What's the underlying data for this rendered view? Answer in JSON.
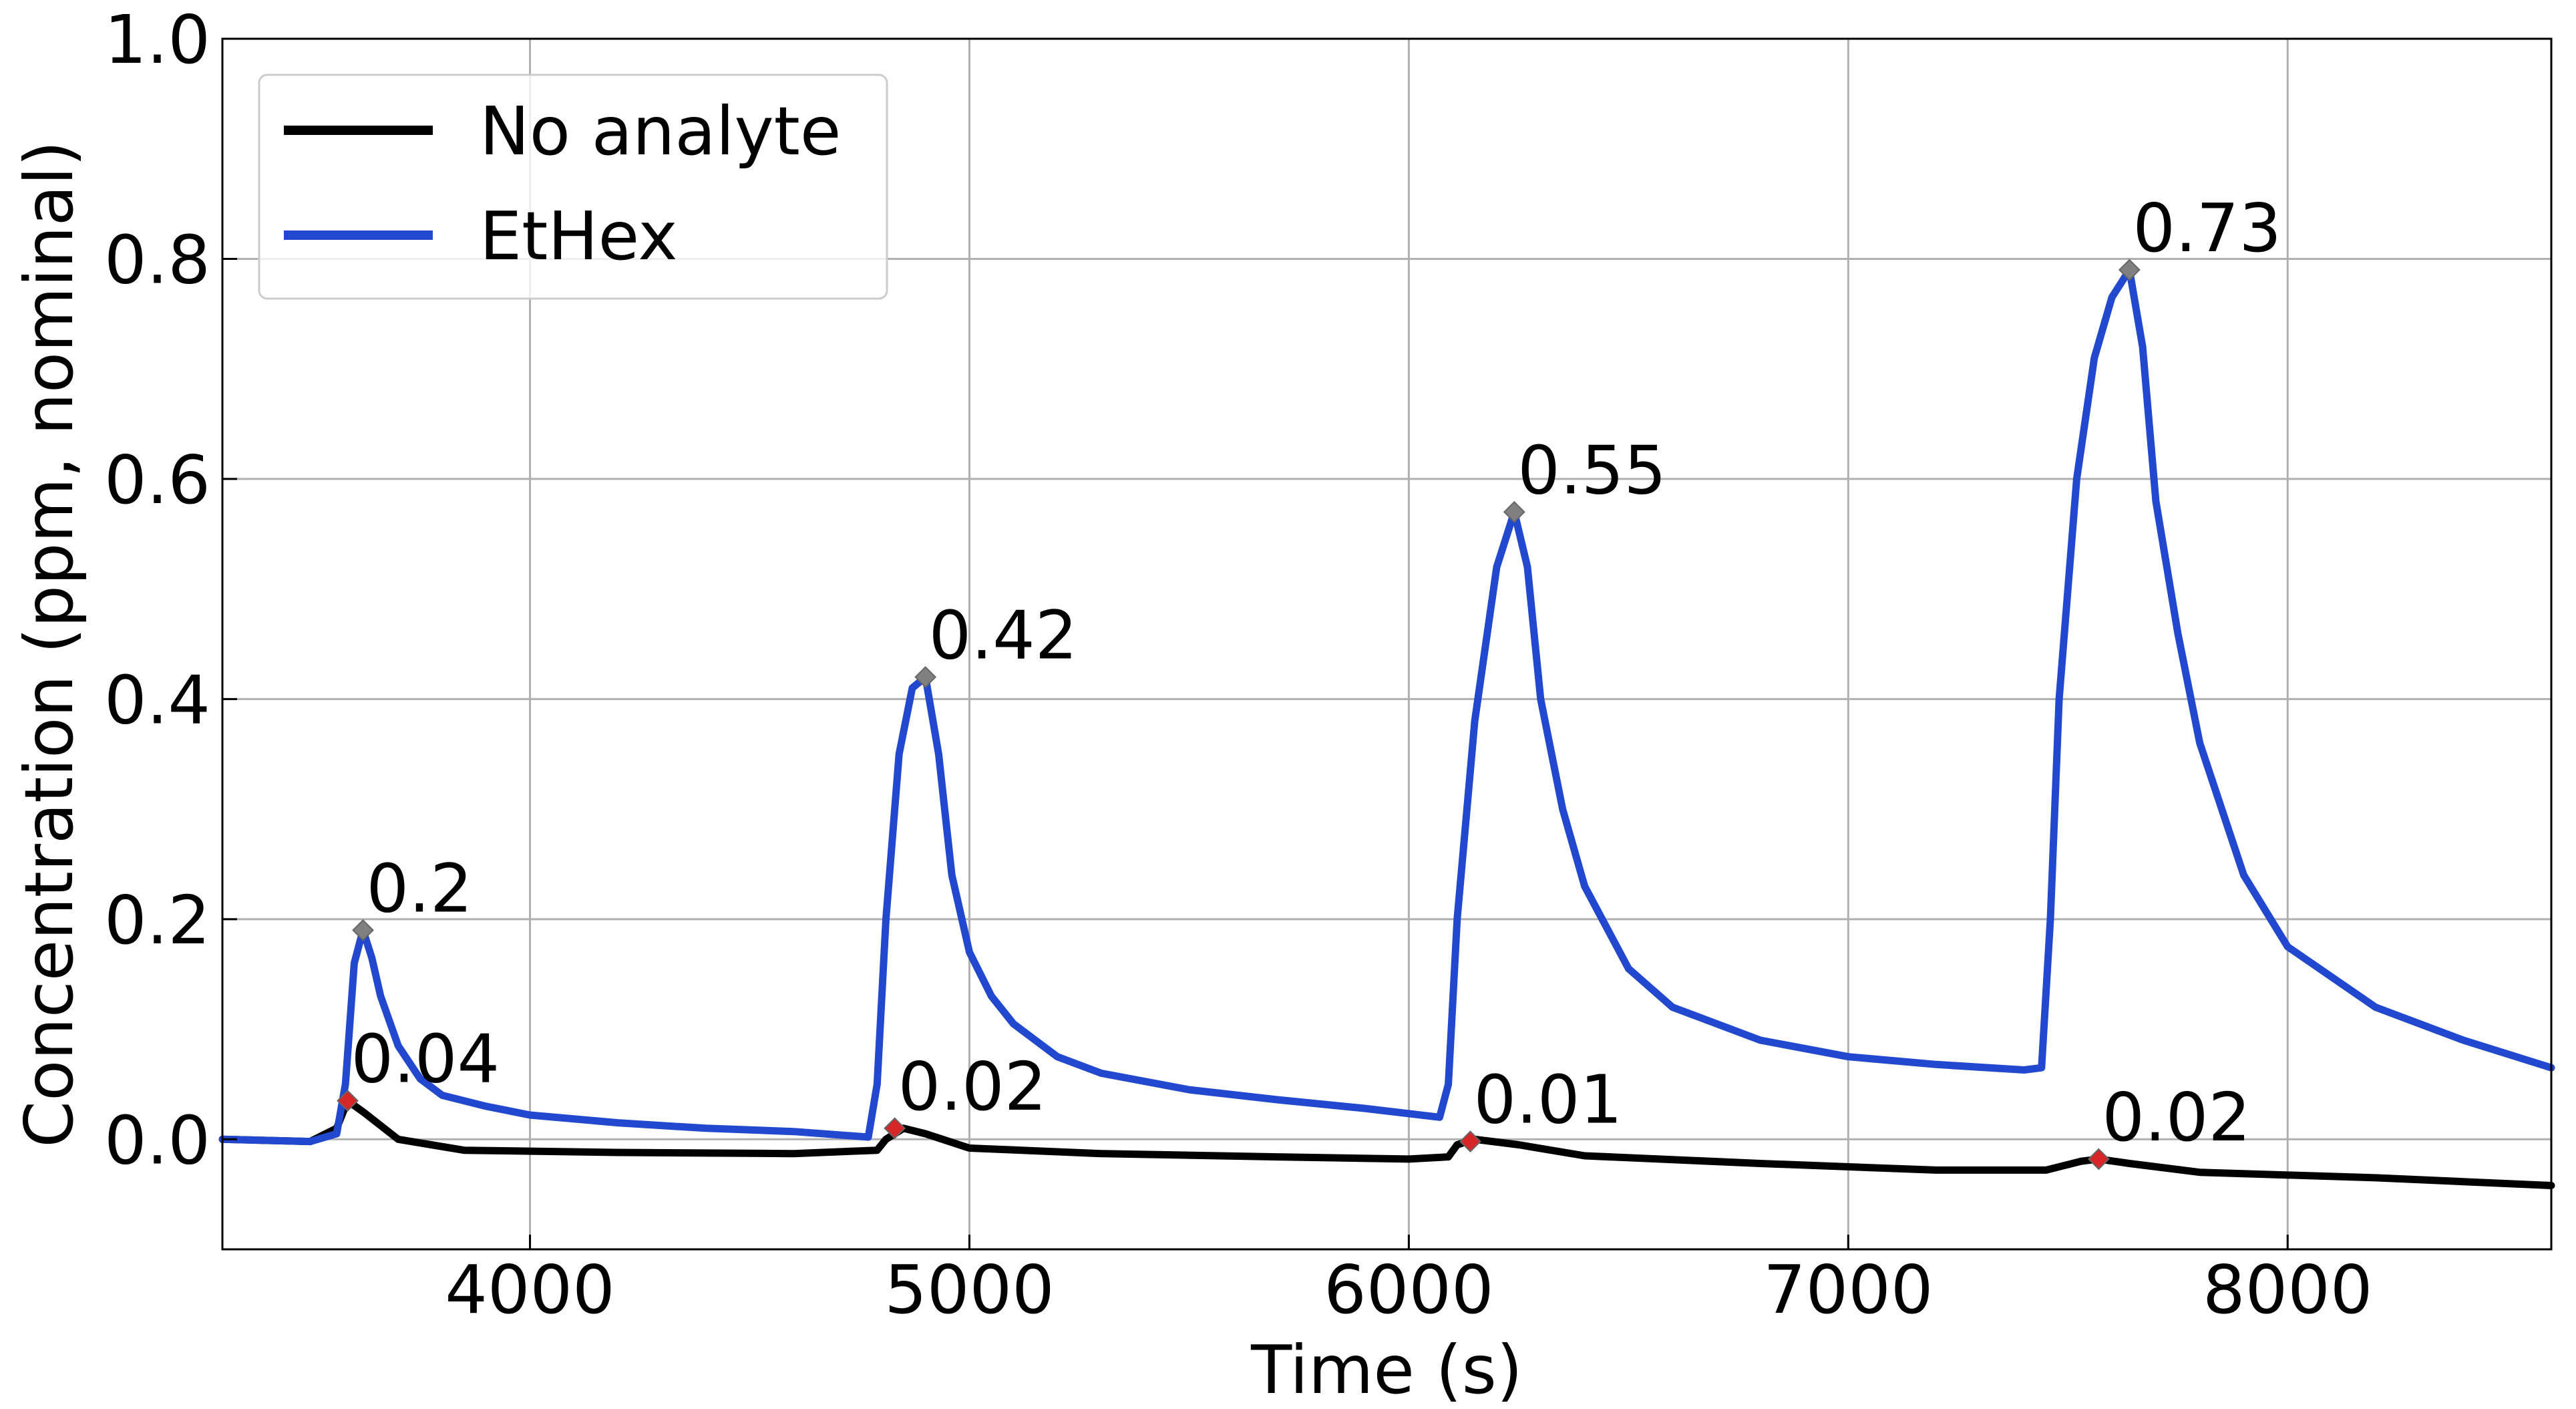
{
  "chart_data": {
    "type": "line",
    "title": "",
    "xlabel": "Time (s)",
    "ylabel": "Concentration (ppm, nominal)",
    "xlim": [
      3300,
      8600
    ],
    "ylim": [
      -0.1,
      1.0
    ],
    "xticks": [
      4000,
      5000,
      6000,
      7000,
      8000
    ],
    "yticks": [
      0.0,
      0.2,
      0.4,
      0.6,
      0.8,
      1.0
    ],
    "xtick_labels": [
      "4000",
      "5000",
      "6000",
      "7000",
      "8000"
    ],
    "ytick_labels": [
      "0.0",
      "0.2",
      "0.4",
      "0.6",
      "0.8",
      "1.0"
    ],
    "grid": true,
    "legend_position": "top-left",
    "series": [
      {
        "name": "No analyte",
        "color": "#000000",
        "x": [
          3300,
          3500,
          3560,
          3585,
          3620,
          3700,
          3850,
          4200,
          4600,
          4790,
          4810,
          4850,
          4900,
          5000,
          5300,
          5700,
          6000,
          6090,
          6110,
          6150,
          6250,
          6400,
          6800,
          7200,
          7450,
          7530,
          7570,
          7640,
          7800,
          8200,
          8600
        ],
        "y": [
          0.0,
          -0.002,
          0.01,
          0.035,
          0.025,
          0.0,
          -0.01,
          -0.012,
          -0.013,
          -0.01,
          0.0,
          0.01,
          0.005,
          -0.008,
          -0.013,
          -0.016,
          -0.018,
          -0.016,
          -0.005,
          0.0,
          -0.005,
          -0.015,
          -0.022,
          -0.028,
          -0.028,
          -0.02,
          -0.018,
          -0.022,
          -0.03,
          -0.035,
          -0.042
        ]
      },
      {
        "name": "EtHex",
        "color": "#2148cf",
        "x": [
          3300,
          3500,
          3560,
          3580,
          3600,
          3620,
          3640,
          3660,
          3700,
          3750,
          3800,
          3900,
          4000,
          4200,
          4400,
          4600,
          4770,
          4790,
          4810,
          4840,
          4870,
          4900,
          4930,
          4960,
          5000,
          5050,
          5100,
          5200,
          5300,
          5500,
          5700,
          5900,
          6070,
          6090,
          6110,
          6150,
          6200,
          6240,
          6270,
          6300,
          6350,
          6400,
          6500,
          6600,
          6800,
          7000,
          7200,
          7400,
          7440,
          7460,
          7480,
          7520,
          7560,
          7600,
          7640,
          7670,
          7700,
          7750,
          7800,
          7900,
          8000,
          8200,
          8400,
          8600
        ],
        "y": [
          0.0,
          -0.002,
          0.005,
          0.05,
          0.16,
          0.19,
          0.165,
          0.13,
          0.085,
          0.055,
          0.04,
          0.03,
          0.022,
          0.015,
          0.01,
          0.007,
          0.002,
          0.05,
          0.2,
          0.35,
          0.41,
          0.42,
          0.35,
          0.24,
          0.17,
          0.13,
          0.105,
          0.075,
          0.06,
          0.045,
          0.036,
          0.028,
          0.02,
          0.05,
          0.2,
          0.38,
          0.52,
          0.57,
          0.52,
          0.4,
          0.3,
          0.23,
          0.155,
          0.12,
          0.09,
          0.075,
          0.068,
          0.063,
          0.065,
          0.2,
          0.4,
          0.6,
          0.71,
          0.765,
          0.79,
          0.72,
          0.58,
          0.46,
          0.36,
          0.24,
          0.175,
          0.12,
          0.09,
          0.065
        ]
      }
    ],
    "annotations": [
      {
        "text": "0.2",
        "x": 3620,
        "y": 0.19,
        "series": "EtHex"
      },
      {
        "text": "0.42",
        "x": 4900,
        "y": 0.42,
        "series": "EtHex"
      },
      {
        "text": "0.55",
        "x": 6240,
        "y": 0.57,
        "series": "EtHex"
      },
      {
        "text": "0.73",
        "x": 7640,
        "y": 0.79,
        "series": "EtHex"
      },
      {
        "text": "0.04",
        "x": 3585,
        "y": 0.035,
        "series": "No analyte"
      },
      {
        "text": "0.02",
        "x": 4830,
        "y": 0.01,
        "series": "No analyte"
      },
      {
        "text": "0.01",
        "x": 6140,
        "y": -0.002,
        "series": "No analyte"
      },
      {
        "text": "0.02",
        "x": 7570,
        "y": -0.018,
        "series": "No analyte"
      }
    ],
    "marker_colors": {
      "EtHex": "#808080",
      "No analyte": "#d62728"
    }
  }
}
